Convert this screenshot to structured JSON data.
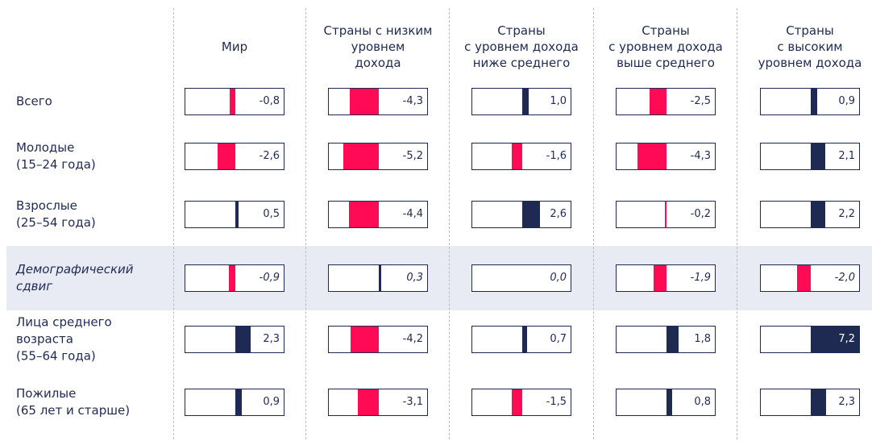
{
  "chart_data": {
    "type": "bar-table",
    "columns": [
      "Мир",
      "Страны с низким\nуровнем\nдохода",
      "Страны\nс уровнем дохода\nниже среднего",
      "Страны\nс уровнем дохода\nвыше среднего",
      "Страны\nс высоким\nуровнем дохода"
    ],
    "rows": [
      "Всего",
      "Молодые\n(15–24 года)",
      "Взрослые\n(25–54 года)",
      "Демографический\nсдвиг",
      "Лица среднего\nвозраста\n(55–64 года)",
      "Пожилые\n(65 лет и старше)"
    ],
    "values": [
      [
        -0.8,
        -4.3,
        1.0,
        -2.5,
        0.9
      ],
      [
        -2.6,
        -5.2,
        -1.6,
        -4.3,
        2.1
      ],
      [
        0.5,
        -4.4,
        2.6,
        -0.2,
        2.2
      ],
      [
        -0.9,
        0.3,
        0.0,
        -1.9,
        -2.0
      ],
      [
        2.3,
        -4.2,
        0.7,
        1.8,
        7.2
      ],
      [
        0.9,
        -3.1,
        -1.5,
        0.8,
        2.3
      ]
    ],
    "value_labels": [
      [
        "-0,8",
        "-4,3",
        "1,0",
        "-2,5",
        "0,9"
      ],
      [
        "-2,6",
        "-5,2",
        "-1,6",
        "-4,3",
        "2,1"
      ],
      [
        "0,5",
        "-4,4",
        "2,6",
        "-0,2",
        "2,2"
      ],
      [
        "-0,9",
        "0,3",
        "0,0",
        "-1,9",
        "-2,0"
      ],
      [
        "2,3",
        "-4,2",
        "0,7",
        "1,8",
        "7,2"
      ],
      [
        "0,9",
        "-3,1",
        "-1,5",
        "0,8",
        "2,3"
      ]
    ],
    "negative_color": "#ff0a54",
    "positive_color": "#1f2a52",
    "highlight_row": 3
  }
}
